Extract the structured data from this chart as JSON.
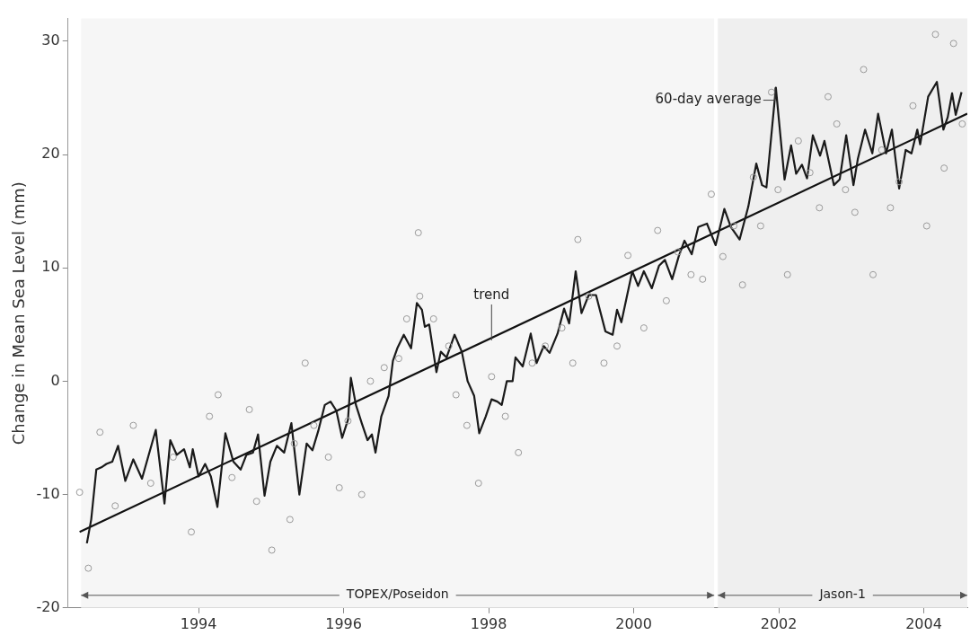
{
  "chart_data": {
    "type": "line",
    "ylabel": "Change in Mean Sea Level (mm)",
    "xlim": [
      1992.2,
      2004.6
    ],
    "xticks": [
      1994,
      1996,
      1998,
      2000,
      2002,
      2004
    ],
    "ylim": [
      -20,
      32
    ],
    "yticks": [
      -20,
      -10,
      0,
      10,
      20,
      30
    ],
    "grid": false,
    "legend": false,
    "series": [
      {
        "type": "scatter",
        "color": "#9a9a9a",
        "marker": "circle",
        "x": [
          1992.36,
          1992.48,
          1992.64,
          1992.85,
          1993.1,
          1993.34,
          1993.65,
          1993.9,
          1994.15,
          1994.27,
          1994.46,
          1994.7,
          1994.8,
          1995.01,
          1995.26,
          1995.32,
          1995.47,
          1995.59,
          1995.79,
          1995.94,
          1996.06,
          1996.25,
          1996.37,
          1996.56,
          1996.76,
          1996.87,
          1997.03,
          1997.05,
          1997.24,
          1997.45,
          1997.55,
          1997.7,
          1997.86,
          1998.04,
          1998.23,
          1998.41,
          1998.6,
          1998.78,
          1999.01,
          1999.16,
          1999.23,
          1999.38,
          1999.59,
          1999.77,
          1999.92,
          2000.14,
          2000.33,
          2000.45,
          2000.61,
          2000.79,
          2000.95,
          2001.07,
          2001.23,
          2001.38,
          2001.5,
          2001.65,
          2001.75,
          2001.9,
          2001.99,
          2002.12,
          2002.27,
          2002.43,
          2002.56,
          2002.68,
          2002.8,
          2002.92,
          2003.05,
          2003.17,
          2003.3,
          2003.42,
          2003.54,
          2003.66,
          2003.85,
          2004.04,
          2004.16,
          2004.28,
          2004.41,
          2004.53
        ],
        "values": [
          -9.8,
          -16.5,
          -4.5,
          -11,
          -3.9,
          -9,
          -6.7,
          -13.3,
          -3.1,
          -1.2,
          -8.5,
          -2.5,
          -10.6,
          -14.9,
          -12.2,
          -5.5,
          1.6,
          -3.9,
          -6.7,
          -9.4,
          -3.5,
          -10,
          0,
          1.2,
          2,
          5.5,
          13.1,
          7.5,
          5.5,
          3.1,
          -1.2,
          -3.9,
          -9,
          0.4,
          -3.1,
          -6.3,
          1.6,
          3.1,
          4.7,
          1.6,
          12.5,
          7.5,
          1.6,
          3.1,
          11.1,
          4.7,
          13.3,
          7.1,
          11.4,
          9.4,
          9,
          16.5,
          11,
          13.7,
          8.5,
          18,
          13.7,
          25.5,
          16.9,
          9.4,
          21.2,
          18.4,
          15.3,
          25.1,
          22.7,
          16.9,
          14.9,
          27.5,
          9.4,
          20.4,
          15.3,
          17.6,
          24.3,
          13.7,
          30.6,
          18.8,
          29.8,
          22.7
        ]
      },
      {
        "type": "line",
        "color": "#1a1a1a",
        "marker": "none",
        "line_style": "solid",
        "x": [
          1992.46,
          1992.52,
          1992.59,
          1992.66,
          1992.73,
          1992.81,
          1992.89,
          1992.99,
          1993.1,
          1993.22,
          1993.41,
          1993.53,
          1993.61,
          1993.7,
          1993.8,
          1993.88,
          1993.92,
          1994,
          1994.09,
          1994.17,
          1994.26,
          1994.37,
          1994.48,
          1994.58,
          1994.66,
          1994.75,
          1994.82,
          1994.91,
          1994.99,
          1995.08,
          1995.18,
          1995.28,
          1995.39,
          1995.49,
          1995.57,
          1995.65,
          1995.74,
          1995.82,
          1995.9,
          1995.98,
          1996.06,
          1996.1,
          1996.17,
          1996.25,
          1996.33,
          1996.39,
          1996.44,
          1996.52,
          1996.62,
          1996.68,
          1996.74,
          1996.83,
          1996.93,
          1997.01,
          1997.08,
          1997.12,
          1997.18,
          1997.28,
          1997.34,
          1997.42,
          1997.53,
          1997.63,
          1997.71,
          1997.8,
          1997.87,
          1997.96,
          1998.04,
          1998.12,
          1998.18,
          1998.25,
          1998.33,
          1998.37,
          1998.47,
          1998.58,
          1998.66,
          1998.76,
          1998.84,
          1998.95,
          1999.04,
          1999.11,
          1999.2,
          1999.28,
          1999.38,
          1999.48,
          1999.61,
          1999.71,
          1999.77,
          1999.83,
          1999.9,
          1999.98,
          2000.06,
          2000.14,
          2000.25,
          2000.35,
          2000.43,
          2000.53,
          2000.62,
          2000.7,
          2000.8,
          2000.89,
          2001.01,
          2001.13,
          2001.25,
          2001.34,
          2001.46,
          2001.58,
          2001.69,
          2001.77,
          2001.83,
          2001.96,
          2002.08,
          2002.17,
          2002.24,
          2002.32,
          2002.39,
          2002.47,
          2002.57,
          2002.63,
          2002.76,
          2002.84,
          2002.93,
          2003.03,
          2003.09,
          2003.19,
          2003.29,
          2003.37,
          2003.48,
          2003.56,
          2003.66,
          2003.75,
          2003.83,
          2003.91,
          2003.95,
          2004.06,
          2004.18,
          2004.27,
          2004.33,
          2004.39,
          2004.44,
          2004.52
        ],
        "values": [
          -14.3,
          -12.2,
          -7.8,
          -7.6,
          -7.3,
          -7.1,
          -5.7,
          -8.8,
          -6.9,
          -8.6,
          -4.3,
          -10.8,
          -5.2,
          -6.5,
          -6,
          -7.6,
          -6,
          -8.4,
          -7.3,
          -8.4,
          -11.1,
          -4.6,
          -7.1,
          -7.8,
          -6.5,
          -6.3,
          -4.7,
          -10.1,
          -7.1,
          -5.7,
          -6.3,
          -3.7,
          -10,
          -5.5,
          -6.1,
          -4.4,
          -2.1,
          -1.8,
          -2.6,
          -5,
          -3.4,
          0.3,
          -2.1,
          -3.7,
          -5.2,
          -4.7,
          -6.3,
          -3.1,
          -1.3,
          1.8,
          2.9,
          4.1,
          2.9,
          6.9,
          6.3,
          4.8,
          5,
          0.8,
          2.6,
          2.1,
          4.1,
          2.6,
          0,
          -1.3,
          -4.6,
          -3.1,
          -1.6,
          -1.8,
          -2.1,
          0,
          0,
          2.1,
          1.3,
          4.2,
          1.6,
          3.1,
          2.5,
          4.2,
          6.4,
          5.1,
          9.7,
          6,
          7.6,
          7.6,
          4.4,
          4.1,
          6.3,
          5.2,
          7.3,
          9.7,
          8.4,
          9.7,
          8.2,
          10.2,
          10.7,
          9,
          11,
          12.4,
          11.2,
          13.6,
          13.9,
          12,
          15.2,
          13.6,
          12.5,
          15.4,
          19.2,
          17.3,
          17.1,
          25.9,
          17.8,
          20.8,
          18.3,
          19.1,
          17.9,
          21.7,
          19.9,
          21.2,
          17.3,
          17.8,
          21.7,
          17.3,
          19.6,
          22.2,
          20.1,
          23.6,
          20.1,
          22.2,
          17,
          20.4,
          20.1,
          22.2,
          20.9,
          25.1,
          26.4,
          22.2,
          23.3,
          25.4,
          23.5,
          25.5
        ]
      },
      {
        "type": "line",
        "color": "#111111",
        "marker": "none",
        "line_style": "solid",
        "x": [
          1992.36,
          2004.6
        ],
        "values": [
          -13.3,
          23.6
        ]
      }
    ],
    "annotations": [
      {
        "text": "60-day average",
        "x": 2001.96,
        "y": 25.9
      },
      {
        "text": "trend",
        "x": 1998.04,
        "y": 3.6
      }
    ],
    "bands": [
      {
        "axis": "x",
        "from": 1992.38,
        "to": 2001.11,
        "label": "TOPEX/Poseidon",
        "color": "#f6f6f6"
      },
      {
        "axis": "x",
        "from": 2001.16,
        "to": 2004.6,
        "label": "Jason-1",
        "color": "#efefef"
      }
    ]
  }
}
